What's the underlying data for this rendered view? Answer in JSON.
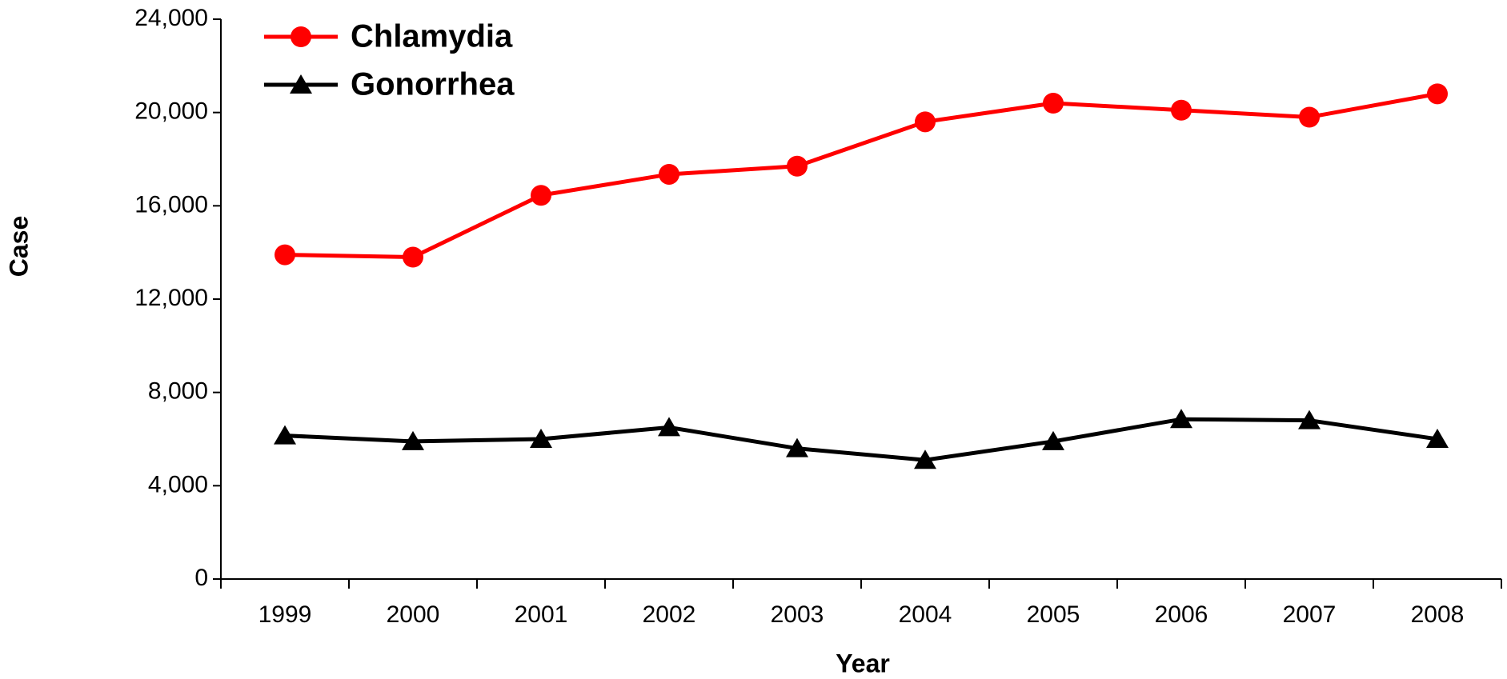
{
  "chart_data": {
    "type": "line",
    "x_label": "Year",
    "y_label": "Case",
    "categories": [
      "1999",
      "2000",
      "2001",
      "2002",
      "2003",
      "2004",
      "2005",
      "2006",
      "2007",
      "2008"
    ],
    "series": [
      {
        "name": "Chlamydia",
        "color": "#ff0000",
        "marker": "circle",
        "values": [
          13900,
          13800,
          16450,
          17350,
          17700,
          19600,
          20400,
          20100,
          19800,
          20800
        ]
      },
      {
        "name": "Gonorrhea",
        "color": "#000000",
        "marker": "triangle",
        "values": [
          6150,
          5900,
          6000,
          6500,
          5600,
          5100,
          5900,
          6850,
          6800,
          6000
        ]
      }
    ],
    "ylim": [
      0,
      24000
    ],
    "yticks": [
      0,
      {
        "value": 4000,
        "label": "4,000"
      },
      {
        "value": 8000,
        "label": "8,000"
      },
      {
        "value": 12000,
        "label": "12,000"
      },
      {
        "value": 16000,
        "label": "16,000"
      },
      {
        "value": 20000,
        "label": "20,000"
      },
      {
        "value": 24000,
        "label": "24,000"
      }
    ],
    "legend": "top-left",
    "grid": false
  }
}
